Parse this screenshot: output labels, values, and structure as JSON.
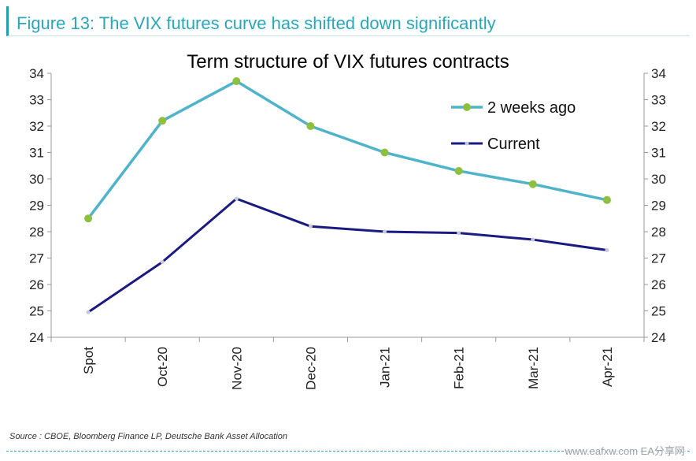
{
  "figure": {
    "label": "Figure 13: The VIX futures curve has shifted down significantly",
    "source": "Source : CBOE, Bloomberg Finance LP, Deutsche Bank Asset Allocation",
    "watermark": "www.eafxw.com  EA分享网"
  },
  "chart_data": {
    "type": "line",
    "title": "Term structure of VIX futures contracts",
    "xlabel": "",
    "ylabel": "",
    "categories": [
      "Spot",
      "Oct-20",
      "Nov-20",
      "Dec-20",
      "Jan-21",
      "Feb-21",
      "Mar-21",
      "Apr-21"
    ],
    "ylim": [
      24,
      34
    ],
    "yticks": [
      24,
      25,
      26,
      27,
      28,
      29,
      30,
      31,
      32,
      33,
      34
    ],
    "secondary_axis": true,
    "grid": false,
    "legend_position": "top-right",
    "series": [
      {
        "name": "2 weeks ago",
        "color": "#4fb3c9",
        "marker_color": "#8fbf3f",
        "values": [
          28.5,
          32.2,
          33.7,
          32.0,
          31.0,
          30.3,
          29.8,
          29.2
        ]
      },
      {
        "name": "Current",
        "color": "#1a1a80",
        "marker_color": "#c8c8dc",
        "values": [
          24.95,
          26.85,
          29.25,
          28.2,
          28.0,
          27.95,
          27.7,
          27.3
        ]
      }
    ]
  }
}
